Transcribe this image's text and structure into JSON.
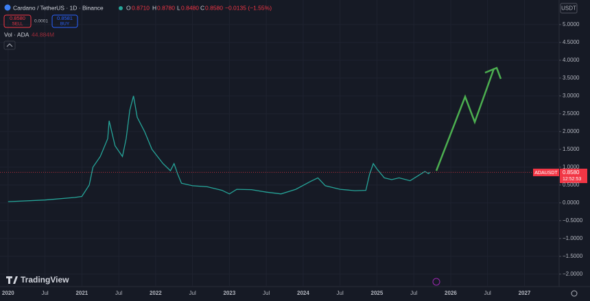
{
  "header": {
    "symbol": "Cardano / TetherUS · 1D · Binance",
    "open_label": "O",
    "open": "0.8710",
    "high_label": "H",
    "high": "0.8780",
    "low_label": "L",
    "low": "0.8480",
    "close_label": "C",
    "close": "0.8580",
    "change": "−0.0135 (−1.55%)",
    "sell_price": "0.8580",
    "sell": "SELL",
    "spread": "0.0001",
    "buy_price": "0.8581",
    "buy": "BUY",
    "volume_label": "Vol · ADA",
    "volume": "44.884M",
    "currency": "USDT"
  },
  "price_tag": {
    "symbol": "ADAUSDT",
    "price": "0.8580",
    "countdown": "12:52:53"
  },
  "brand": "TradingView",
  "chart_data": {
    "type": "line",
    "color": "#26a69a",
    "x": [
      2020.0,
      2020.5,
      2020.9,
      2021.0,
      2021.1,
      2021.15,
      2021.25,
      2021.35,
      2021.37,
      2021.45,
      2021.55,
      2021.6,
      2021.65,
      2021.7,
      2021.75,
      2021.85,
      2021.95,
      2022.1,
      2022.2,
      2022.25,
      2022.3,
      2022.35,
      2022.5,
      2022.7,
      2022.9,
      2023.0,
      2023.1,
      2023.3,
      2023.5,
      2023.7,
      2023.9,
      2024.1,
      2024.2,
      2024.3,
      2024.5,
      2024.7,
      2024.85,
      2024.9,
      2024.95,
      2025.0,
      2025.1,
      2025.2,
      2025.3,
      2025.45,
      2025.55,
      2025.65,
      2025.7,
      2025.72
    ],
    "values": [
      0.033,
      0.08,
      0.15,
      0.18,
      0.5,
      1.0,
      1.3,
      1.8,
      2.3,
      1.6,
      1.3,
      1.8,
      2.6,
      3.0,
      2.4,
      2.0,
      1.5,
      1.1,
      0.9,
      1.1,
      0.8,
      0.55,
      0.48,
      0.45,
      0.35,
      0.25,
      0.38,
      0.37,
      0.3,
      0.25,
      0.38,
      0.6,
      0.7,
      0.48,
      0.38,
      0.34,
      0.35,
      0.8,
      1.1,
      0.95,
      0.7,
      0.65,
      0.7,
      0.62,
      0.75,
      0.88,
      0.82,
      0.858
    ],
    "xlim": [
      2019.89,
      2027.47
    ],
    "xticks": [
      2020,
      {
        "value": 2020.5,
        "label": "Jul"
      },
      2021,
      {
        "value": 2021.5,
        "label": "Jul"
      },
      2022,
      {
        "value": 2022.5,
        "label": "Jul"
      },
      2023,
      {
        "value": 2023.5,
        "label": "Jul"
      },
      2024,
      {
        "value": 2024.5,
        "label": "Jul"
      },
      2025,
      {
        "value": 2025.5,
        "label": "Jul"
      },
      2026,
      {
        "value": 2026.5,
        "label": "Jul"
      },
      2027
    ],
    "ylim": [
      -2.35,
      5.69
    ],
    "yticks": [
      {
        "value": 5,
        "label": "5.0000"
      },
      {
        "value": 4.5,
        "label": "4.5000"
      },
      {
        "value": 4,
        "label": "4.0000"
      },
      {
        "value": 3.5,
        "label": "3.5000"
      },
      {
        "value": 3,
        "label": "3.0000"
      },
      {
        "value": 2.5,
        "label": "2.5000"
      },
      {
        "value": 2,
        "label": "2.0000"
      },
      {
        "value": 1.5,
        "label": "1.5000"
      },
      {
        "value": 1,
        "label": "1.0000"
      },
      {
        "value": 0.5,
        "label": "0.5000"
      },
      {
        "value": 0,
        "label": "0.0000"
      },
      {
        "value": -0.5,
        "label": "−0.5000"
      },
      {
        "value": -1,
        "label": "−1.0000"
      },
      {
        "value": -1.5,
        "label": "−1.5000"
      },
      {
        "value": -2,
        "label": "−2.0000"
      }
    ],
    "grid": true
  }
}
